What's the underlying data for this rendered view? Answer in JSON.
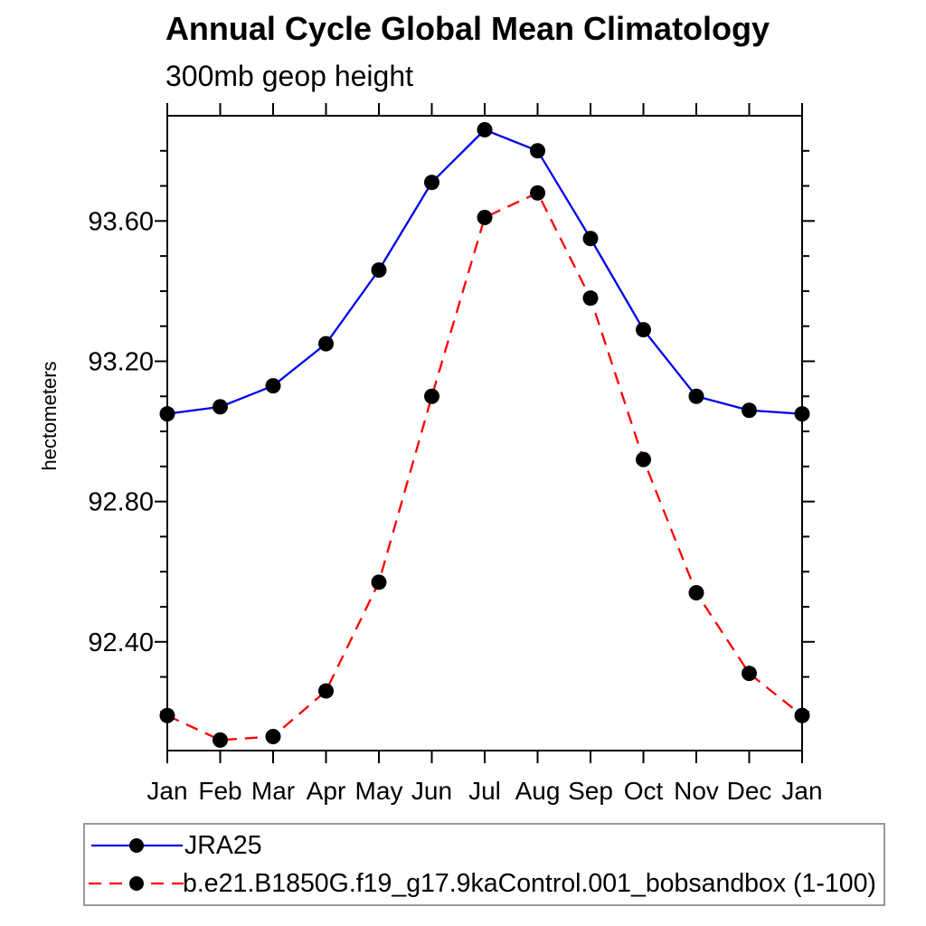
{
  "title": "Annual Cycle Global Mean Climatology",
  "subtitle": "300mb geop height",
  "ylabel": "hectometers",
  "chart_data": {
    "type": "line",
    "categories": [
      "Jan",
      "Feb",
      "Mar",
      "Apr",
      "May",
      "Jun",
      "Jul",
      "Aug",
      "Sep",
      "Oct",
      "Nov",
      "Dec",
      "Jan"
    ],
    "series": [
      {
        "name": "JRA25",
        "color": "#0000ee",
        "line_style": "solid",
        "values": [
          93.05,
          93.07,
          93.13,
          93.25,
          93.46,
          93.71,
          93.86,
          93.8,
          93.55,
          93.29,
          93.1,
          93.06,
          93.05
        ]
      },
      {
        "name": "b.e21.B1850G.f19_g17.9kaControl.001_bobsandbox (1-100)",
        "color": "#ff0000",
        "line_style": "dashed",
        "values": [
          92.19,
          92.12,
          92.13,
          92.26,
          92.57,
          93.1,
          93.61,
          93.68,
          93.38,
          92.92,
          92.54,
          92.31,
          92.19
        ]
      }
    ],
    "marker": {
      "shape": "filled-circle",
      "color": "#000000",
      "radius": 8.5
    },
    "title": "Annual Cycle Global Mean Climatology",
    "subtitle": "300mb geop height",
    "xlabel": "",
    "ylabel": "hectometers",
    "ylim": [
      92.09,
      93.9
    ],
    "yticks_major": [
      "92.40",
      "92.80",
      "93.20",
      "93.60"
    ],
    "ytick_minor_step": 0.1,
    "grid": false,
    "frame_color": "#000000",
    "legend_position": "bottom"
  },
  "legend": {
    "entries": [
      {
        "label": "JRA25"
      },
      {
        "label": "b.e21.B1850G.f19_g17.9kaControl.001_bobsandbox (1-100)"
      }
    ]
  }
}
